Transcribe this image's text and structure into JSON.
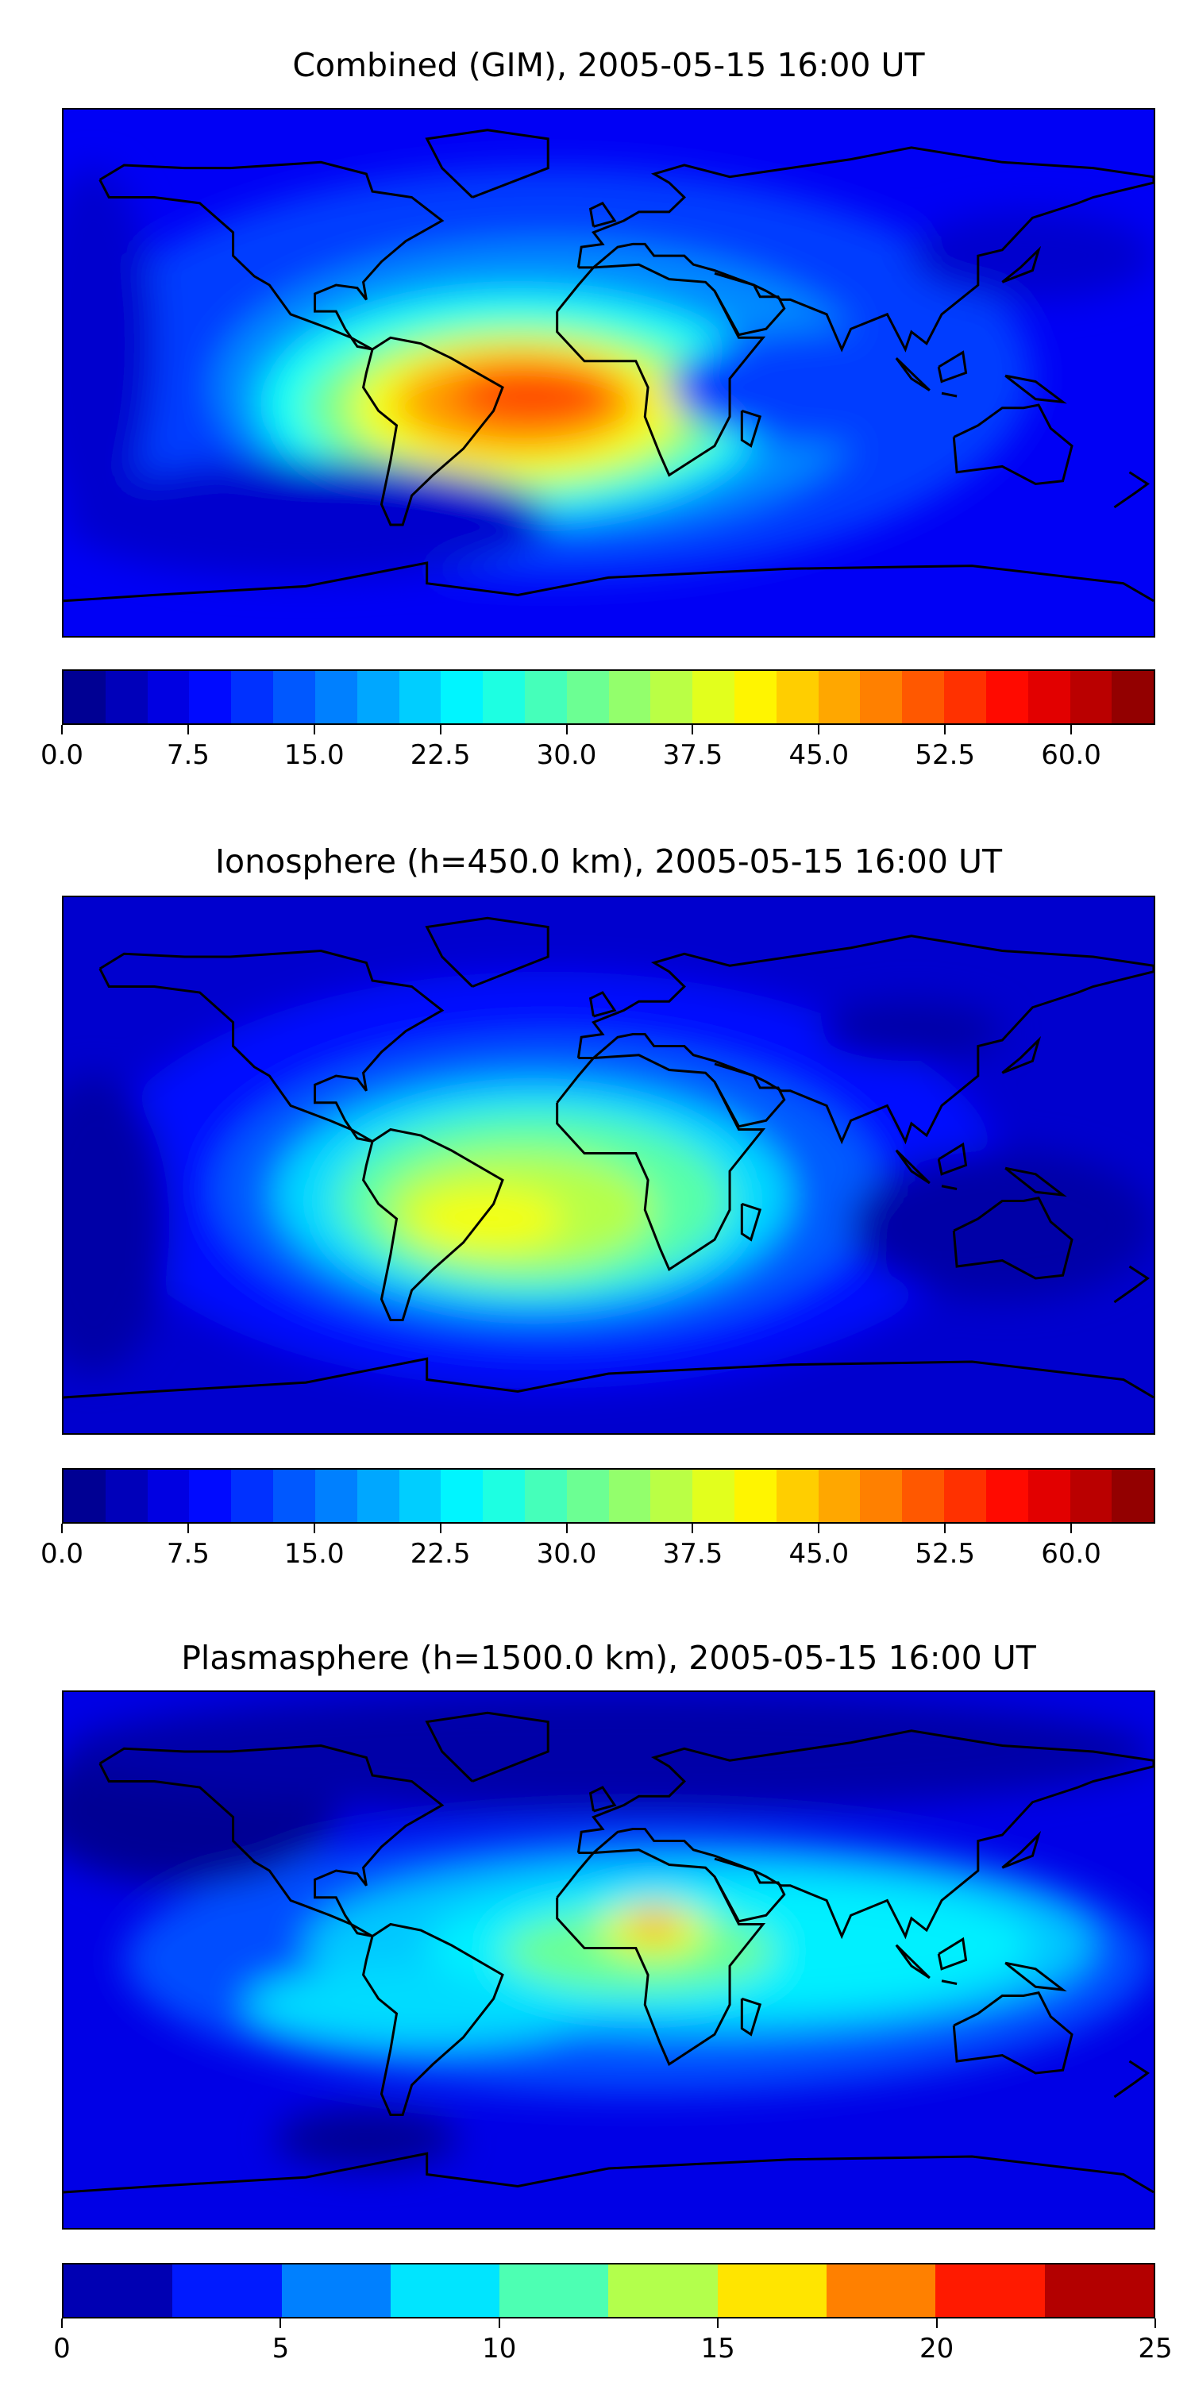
{
  "chart_data": [
    {
      "type": "heatmap",
      "title": "Combined (GIM), 2005-05-15 16:00 UT",
      "colormap": "jet",
      "colorbar": {
        "min": 0,
        "max": 65,
        "step": 2.5,
        "ticks": [
          0,
          7.5,
          15,
          22.5,
          30,
          37.5,
          45,
          52.5,
          60
        ],
        "tick_labels": [
          "0.0",
          "7.5",
          "15.0",
          "22.5",
          "30.0",
          "37.5",
          "45.0",
          "52.5",
          "60.0"
        ]
      },
      "field": {
        "background": 7.5,
        "peak": 52.5,
        "peak_location": "South America / equatorial Atlantic"
      }
    },
    {
      "type": "heatmap",
      "title": "Ionosphere  (h=450.0 km), 2005-05-15 16:00 UT",
      "colormap": "jet",
      "colorbar": {
        "min": 0,
        "max": 65,
        "step": 2.5,
        "ticks": [
          0,
          7.5,
          15,
          22.5,
          30,
          37.5,
          45,
          52.5,
          60
        ],
        "tick_labels": [
          "0.0",
          "7.5",
          "15.0",
          "22.5",
          "30.0",
          "37.5",
          "45.0",
          "52.5",
          "60.0"
        ]
      },
      "field": {
        "background": 5,
        "peak": 40,
        "peak_location": "South America / South Atlantic"
      }
    },
    {
      "type": "heatmap",
      "title": "Plasmasphere (h=1500.0 km), 2005-05-15 16:00 UT",
      "colormap": "jet",
      "colorbar": {
        "min": 0,
        "max": 25,
        "step": 2.5,
        "ticks": [
          0,
          5,
          10,
          15,
          20,
          25
        ],
        "tick_labels": [
          "0",
          "5",
          "10",
          "15",
          "20",
          "25"
        ]
      },
      "field": {
        "background": 2.5,
        "peak": 20,
        "peak_location": "Central Africa"
      }
    }
  ]
}
